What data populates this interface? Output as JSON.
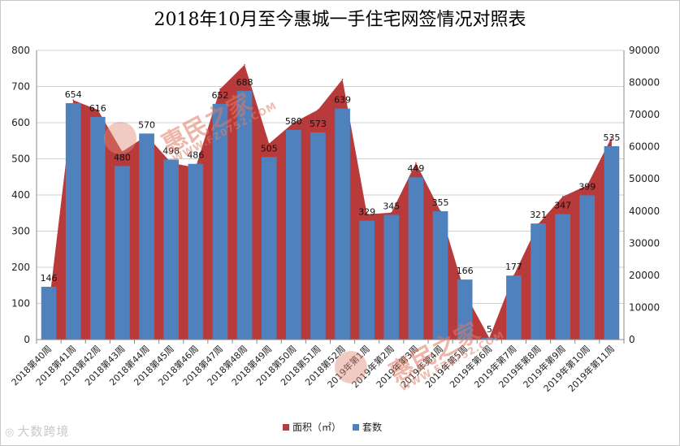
{
  "chart_data": {
    "type": "bar+area",
    "title": "2018年10月至今惠城一手住宅网签情况对照表",
    "categories": [
      "2018第40周",
      "2018第41周",
      "2018第42周",
      "2018第43周",
      "2018第44周",
      "2018第45周",
      "2018第46周",
      "2018第47周",
      "2018第48周",
      "2018第49周",
      "2018第50周",
      "2018第51周",
      "2018第52周",
      "2019年第1周",
      "2019年第2周",
      "2019年第3周",
      "2019年第4周",
      "2019年第5周",
      "2019年第6周",
      "2019年第7周",
      "2019年第8周",
      "2019年第9周",
      "2019年第10周",
      "2019年第11周"
    ],
    "series": [
      {
        "name": "面积（㎡）",
        "type": "area",
        "axis": "right",
        "color": "#b83a3a",
        "values": [
          10500,
          74500,
          71500,
          58500,
          63500,
          55000,
          53500,
          78000,
          85500,
          61000,
          67500,
          71500,
          81000,
          39000,
          39500,
          55000,
          40000,
          14500,
          500,
          20000,
          36000,
          44500,
          48000,
          63000
        ]
      },
      {
        "name": "套数",
        "type": "bar",
        "axis": "left",
        "color": "#4f81bd",
        "values": [
          146,
          654,
          616,
          480,
          570,
          498,
          486,
          652,
          688,
          505,
          580,
          573,
          639,
          329,
          345,
          449,
          355,
          166,
          5,
          177,
          321,
          347,
          399,
          535
        ]
      }
    ],
    "y_left": {
      "min": 0,
      "max": 800,
      "step": 100,
      "ticks": [
        "0",
        "100",
        "200",
        "300",
        "400",
        "500",
        "600",
        "700",
        "800"
      ]
    },
    "y_right": {
      "min": 0,
      "max": 90000,
      "step": 10000,
      "ticks": [
        "0",
        "10000",
        "20000",
        "30000",
        "40000",
        "50000",
        "60000",
        "70000",
        "80000",
        "90000"
      ]
    },
    "grid": true,
    "legend_position": "bottom"
  },
  "legend": {
    "area_label": "面积（㎡）",
    "bar_label": "套数"
  },
  "watermark": {
    "brand": "惠民之家",
    "url": "WWW.FZ0752.COM",
    "sub": "惠州房地产权威媒体"
  },
  "footer": {
    "brand": "大数跨境"
  }
}
